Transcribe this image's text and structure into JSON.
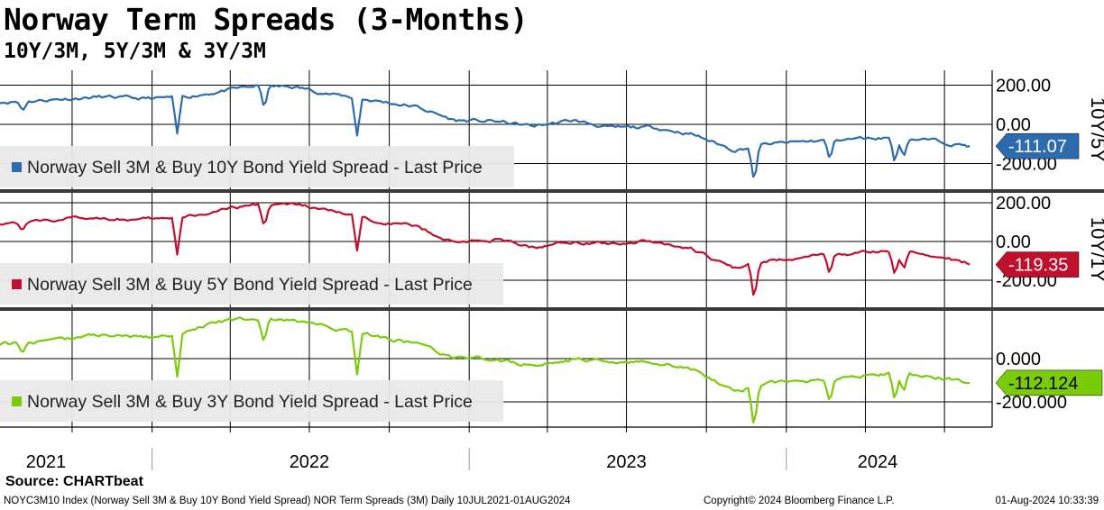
{
  "title": "Norway Term Spreads (3-Months)",
  "subtitle": "10Y/3M, 5Y/3M & 3Y/3M",
  "source": "Source: CHARTbeat",
  "footer": {
    "left": "NOYC3M10 Index (Norway Sell 3M & Buy 10Y Bond Yield Spread) NOR Term Spreads (3M)  Daily 10JUL2021-01AUG2024",
    "middle": "Copyright© 2024 Bloomberg Finance L.P.",
    "right": "01-Aug-2024 10:33:39"
  },
  "x_axis_labels": [
    "2021",
    "2022",
    "2023",
    "2024"
  ],
  "chart_data": [
    {
      "type": "line",
      "side_label": "10Y/5Y",
      "yticks": [
        "200.00",
        "0.00",
        "-200.00"
      ],
      "ytick_values": [
        200,
        0,
        -200
      ],
      "ylim": [
        -280,
        230
      ],
      "grid": true,
      "legend": "top-left",
      "series": [
        {
          "name": "Norway Sell 3M & Buy 10Y Bond Yield Spread - Last Price",
          "color": "#2e6bae",
          "last_value": "-111.07",
          "x": [
            "2021-07-10",
            "2021-08-15",
            "2021-09-20",
            "2021-11-01",
            "2021-12-15",
            "2022-02-01",
            "2022-03-15",
            "2022-05-01",
            "2022-06-15",
            "2022-08-01",
            "2022-09-15",
            "2022-11-01",
            "2022-12-15",
            "2023-02-01",
            "2023-03-15",
            "2023-05-01",
            "2023-06-15",
            "2023-08-01",
            "2023-09-15",
            "2023-11-01",
            "2023-12-15",
            "2024-02-01",
            "2024-03-15",
            "2024-05-01",
            "2024-06-15",
            "2024-08-01"
          ],
          "y": [
            115,
            120,
            130,
            140,
            130,
            135,
            165,
            195,
            190,
            150,
            120,
            90,
            20,
            15,
            -10,
            20,
            -20,
            -15,
            -50,
            -130,
            -100,
            -85,
            -75,
            -65,
            -80,
            -111
          ]
        }
      ]
    },
    {
      "type": "line",
      "side_label": "10Y/1Y",
      "yticks": [
        "200.00",
        "0.00",
        "-200.00"
      ],
      "ytick_values": [
        200,
        0,
        -200
      ],
      "ylim": [
        -280,
        230
      ],
      "grid": true,
      "legend": "top-left",
      "series": [
        {
          "name": "Norway Sell 3M & Buy 5Y Bond Yield Spread - Last Price",
          "color": "#c0102e",
          "last_value": "-119.35",
          "x": [
            "2021-07-10",
            "2021-08-15",
            "2021-09-20",
            "2021-11-01",
            "2021-12-15",
            "2022-02-01",
            "2022-03-15",
            "2022-05-01",
            "2022-06-15",
            "2022-08-01",
            "2022-09-15",
            "2022-11-01",
            "2022-12-15",
            "2023-02-01",
            "2023-03-15",
            "2023-05-01",
            "2023-06-15",
            "2023-08-01",
            "2023-09-15",
            "2023-11-01",
            "2023-12-15",
            "2024-02-01",
            "2024-03-15",
            "2024-05-01",
            "2024-06-15",
            "2024-08-01"
          ],
          "y": [
            95,
            105,
            115,
            125,
            110,
            120,
            155,
            190,
            190,
            150,
            110,
            80,
            -5,
            10,
            -30,
            0,
            -10,
            5,
            -40,
            -140,
            -100,
            -75,
            -65,
            -50,
            -70,
            -119
          ]
        }
      ]
    },
    {
      "type": "line",
      "yticks": [
        "0.000",
        "-200.000"
      ],
      "ytick_values": [
        0,
        -200
      ],
      "ylim": [
        -280,
        230
      ],
      "grid": true,
      "legend": "top-left",
      "series": [
        {
          "name": "Norway Sell 3M & Buy 3Y Bond Yield Spread - Last Price",
          "color": "#7acc0a",
          "last_value": "-112.124",
          "x": [
            "2021-07-10",
            "2021-08-15",
            "2021-09-20",
            "2021-11-01",
            "2021-12-15",
            "2022-02-01",
            "2022-03-15",
            "2022-05-01",
            "2022-06-15",
            "2022-08-01",
            "2022-09-15",
            "2022-11-01",
            "2022-12-15",
            "2023-02-01",
            "2023-03-15",
            "2023-05-01",
            "2023-06-15",
            "2023-08-01",
            "2023-09-15",
            "2023-11-01",
            "2023-12-15",
            "2024-02-01",
            "2024-03-15",
            "2024-05-01",
            "2024-06-15",
            "2024-08-01"
          ],
          "y": [
            70,
            75,
            90,
            110,
            100,
            110,
            170,
            185,
            175,
            140,
            105,
            70,
            0,
            -5,
            -30,
            -5,
            -20,
            -15,
            -50,
            -150,
            -115,
            -100,
            -85,
            -65,
            -80,
            -112
          ]
        }
      ]
    }
  ]
}
